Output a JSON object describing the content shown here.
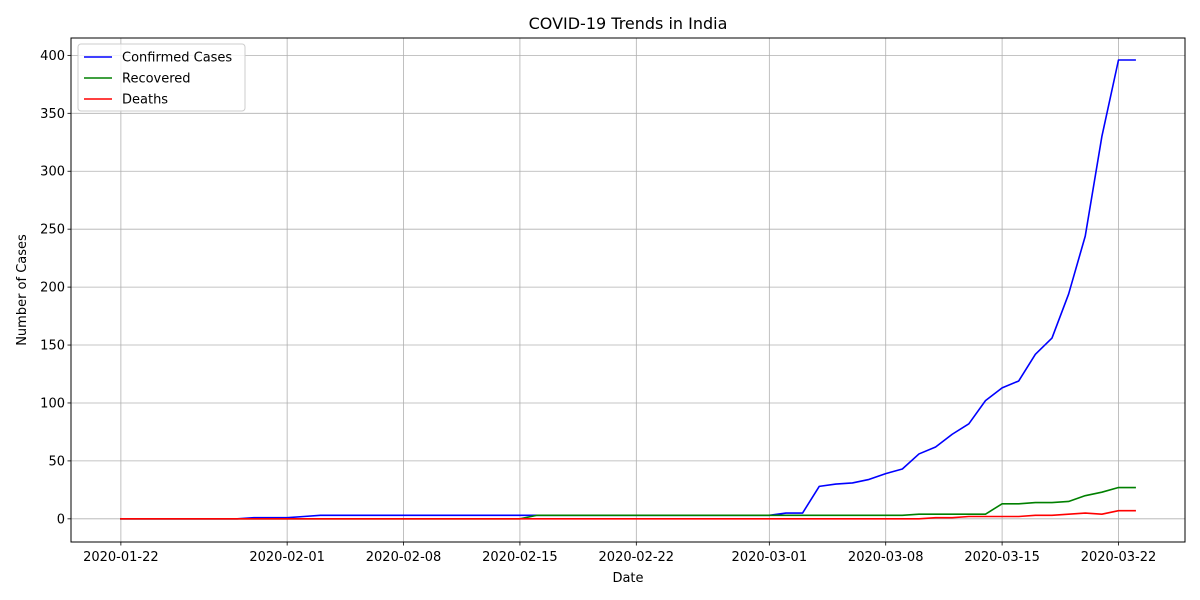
{
  "chart_data": {
    "type": "line",
    "title": "COVID-19 Trends in India",
    "xlabel": "Date",
    "ylabel": "Number of Cases",
    "x_ticks": [
      "2020-01-22",
      "2020-02-01",
      "2020-02-08",
      "2020-02-15",
      "2020-02-22",
      "2020-03-01",
      "2020-03-08",
      "2020-03-15",
      "2020-03-22"
    ],
    "y_ticks": [
      0,
      50,
      100,
      150,
      200,
      250,
      300,
      350,
      400
    ],
    "xlim": [
      "2020-01-19",
      "2020-03-26"
    ],
    "ylim": [
      -20,
      415
    ],
    "grid": true,
    "legend_position": "top-left",
    "x": [
      "2020-01-22",
      "2020-01-23",
      "2020-01-24",
      "2020-01-25",
      "2020-01-26",
      "2020-01-27",
      "2020-01-28",
      "2020-01-29",
      "2020-01-30",
      "2020-01-31",
      "2020-02-01",
      "2020-02-02",
      "2020-02-03",
      "2020-02-04",
      "2020-02-05",
      "2020-02-06",
      "2020-02-07",
      "2020-02-08",
      "2020-02-09",
      "2020-02-10",
      "2020-02-11",
      "2020-02-12",
      "2020-02-13",
      "2020-02-14",
      "2020-02-15",
      "2020-02-16",
      "2020-02-17",
      "2020-02-18",
      "2020-02-19",
      "2020-02-20",
      "2020-02-21",
      "2020-02-22",
      "2020-02-23",
      "2020-02-24",
      "2020-02-25",
      "2020-02-26",
      "2020-02-27",
      "2020-02-28",
      "2020-02-29",
      "2020-03-01",
      "2020-03-02",
      "2020-03-03",
      "2020-03-04",
      "2020-03-05",
      "2020-03-06",
      "2020-03-07",
      "2020-03-08",
      "2020-03-09",
      "2020-03-10",
      "2020-03-11",
      "2020-03-12",
      "2020-03-13",
      "2020-03-14",
      "2020-03-15",
      "2020-03-16",
      "2020-03-17",
      "2020-03-18",
      "2020-03-19",
      "2020-03-20",
      "2020-03-21",
      "2020-03-22",
      "2020-03-23"
    ],
    "series": [
      {
        "name": "Confirmed Cases",
        "color": "#0000ff",
        "values": [
          0,
          0,
          0,
          0,
          0,
          0,
          0,
          0,
          1,
          1,
          1,
          2,
          3,
          3,
          3,
          3,
          3,
          3,
          3,
          3,
          3,
          3,
          3,
          3,
          3,
          3,
          3,
          3,
          3,
          3,
          3,
          3,
          3,
          3,
          3,
          3,
          3,
          3,
          3,
          3,
          5,
          5,
          28,
          30,
          31,
          34,
          39,
          43,
          56,
          62,
          73,
          82,
          102,
          113,
          119,
          142,
          156,
          194,
          244,
          330,
          396,
          396
        ]
      },
      {
        "name": "Recovered",
        "color": "#008000",
        "values": [
          0,
          0,
          0,
          0,
          0,
          0,
          0,
          0,
          0,
          0,
          0,
          0,
          0,
          0,
          0,
          0,
          0,
          0,
          0,
          0,
          0,
          0,
          0,
          0,
          0,
          3,
          3,
          3,
          3,
          3,
          3,
          3,
          3,
          3,
          3,
          3,
          3,
          3,
          3,
          3,
          3,
          3,
          3,
          3,
          3,
          3,
          3,
          3,
          4,
          4,
          4,
          4,
          4,
          13,
          13,
          14,
          14,
          15,
          20,
          23,
          27,
          27
        ]
      },
      {
        "name": "Deaths",
        "color": "#ff0000",
        "values": [
          0,
          0,
          0,
          0,
          0,
          0,
          0,
          0,
          0,
          0,
          0,
          0,
          0,
          0,
          0,
          0,
          0,
          0,
          0,
          0,
          0,
          0,
          0,
          0,
          0,
          0,
          0,
          0,
          0,
          0,
          0,
          0,
          0,
          0,
          0,
          0,
          0,
          0,
          0,
          0,
          0,
          0,
          0,
          0,
          0,
          0,
          0,
          0,
          0,
          1,
          1,
          2,
          2,
          2,
          2,
          3,
          3,
          4,
          5,
          4,
          7,
          7
        ]
      }
    ]
  }
}
